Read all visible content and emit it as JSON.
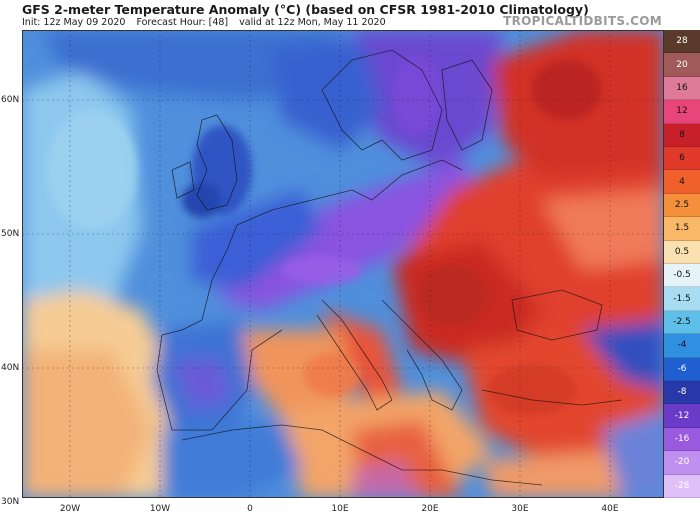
{
  "header": {
    "title": "GFS 2-meter Temperature Anomaly (°C) (based on CFSR 1981-2010 Climatology)",
    "init": "Init: 12z May 09 2020",
    "forecast_hour": "Forecast Hour: [48]",
    "valid": "valid at 12z Mon, May 11 2020",
    "brand": "TROPICALTIDBITS.COM"
  },
  "map": {
    "lat_labels": [
      "60N",
      "50N",
      "40N",
      "30N"
    ],
    "lon_labels": [
      "20W",
      "10W",
      "0",
      "10E",
      "20E",
      "30E",
      "40E"
    ]
  },
  "colorbar": {
    "labels": [
      "28",
      "20",
      "16",
      "12",
      "8",
      "6",
      "4",
      "2.5",
      "1.5",
      "0.5",
      "-0.5",
      "-1.5",
      "-2.5",
      "-4",
      "-6",
      "-8",
      "-12",
      "-16",
      "-20",
      "-28"
    ],
    "colors": [
      "#5a3a2a",
      "#a05a5a",
      "#e07a9a",
      "#e8457a",
      "#c8202a",
      "#e23a2a",
      "#f0602a",
      "#f4903a",
      "#f8b868",
      "#fbe0b0",
      "#e6f4fa",
      "#a8dcf0",
      "#5ec0e8",
      "#2f8fe0",
      "#1f5fd0",
      "#2838a8",
      "#6a3ac8",
      "#9a5ae0",
      "#c090f0",
      "#e0c0f8"
    ]
  }
}
